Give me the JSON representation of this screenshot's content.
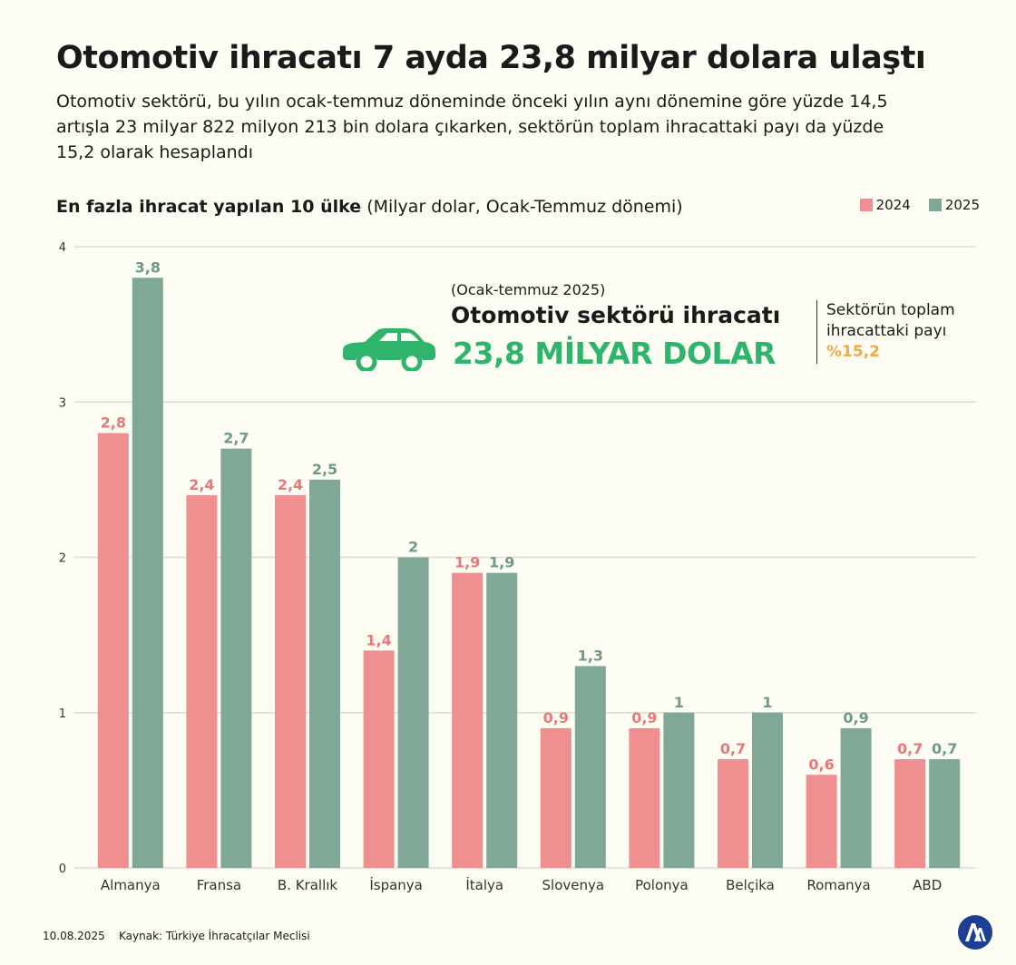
{
  "title": "Otomotiv ihracatı 7 ayda 23,8 milyar dolara ulaştı",
  "subtitle": "Otomotiv sektörü, bu yılın ocak-temmuz döneminde önceki yılın aynı dönemine göre yüzde 14,5 artışla 23 milyar 822 milyon 213 bin dolara çıkarken, sektörün toplam ihracattaki payı da yüzde 15,2 olarak hesaplandı",
  "chart_heading": {
    "bold": "En fazla ihracat yapılan 10 ülke",
    "normal": "(Milyar dolar, Ocak-Temmuz dönemi)"
  },
  "callout": {
    "period": "(Ocak-temmuz 2025)",
    "heading": "Otomotiv sektörü ihracatı",
    "value": "23,8 MİLYAR DOLAR",
    "icon": "car-icon",
    "share_label": "Sektörün toplam ihracattaki payı",
    "share_value": "%15,2"
  },
  "colors": {
    "s2024": "#ef8f8f",
    "s2025": "#7fa896",
    "label2024": "#e97878",
    "label2025": "#6e9a86",
    "accent_green": "#2fb56b",
    "accent_orange": "#f0a94a",
    "grid": "#dcdcd2"
  },
  "chart_data": {
    "type": "bar",
    "title": "En fazla ihracat yapılan 10 ülke (Milyar dolar, Ocak-Temmuz dönemi)",
    "categories": [
      "Almanya",
      "Fransa",
      "B. Krallık",
      "İspanya",
      "İtalya",
      "Slovenya",
      "Polonya",
      "Belçika",
      "Romanya",
      "ABD"
    ],
    "series": [
      {
        "name": "2024",
        "values": [
          2.8,
          2.4,
          2.4,
          1.4,
          1.9,
          0.9,
          0.9,
          0.7,
          0.6,
          0.7
        ],
        "labels": [
          "2,8",
          "2,4",
          "2,4",
          "1,4",
          "1,9",
          "0,9",
          "0,9",
          "0,7",
          "0,6",
          "0,7"
        ]
      },
      {
        "name": "2025",
        "values": [
          3.8,
          2.7,
          2.5,
          2.0,
          1.9,
          1.3,
          1.0,
          1.0,
          0.9,
          0.7
        ],
        "labels": [
          "3,8",
          "2,7",
          "2,5",
          "2",
          "1,9",
          "1,3",
          "1",
          "1",
          "0,9",
          "0,7"
        ]
      }
    ],
    "yticks": [
      "0",
      "1",
      "2",
      "3",
      "4"
    ],
    "ylim": [
      0,
      4
    ],
    "grid": true,
    "legend": "top-right"
  },
  "footer": {
    "date": "10.08.2025",
    "source": "Kaynak: Türkiye İhracatçılar Meclisi",
    "logo": "aa-logo-icon"
  }
}
